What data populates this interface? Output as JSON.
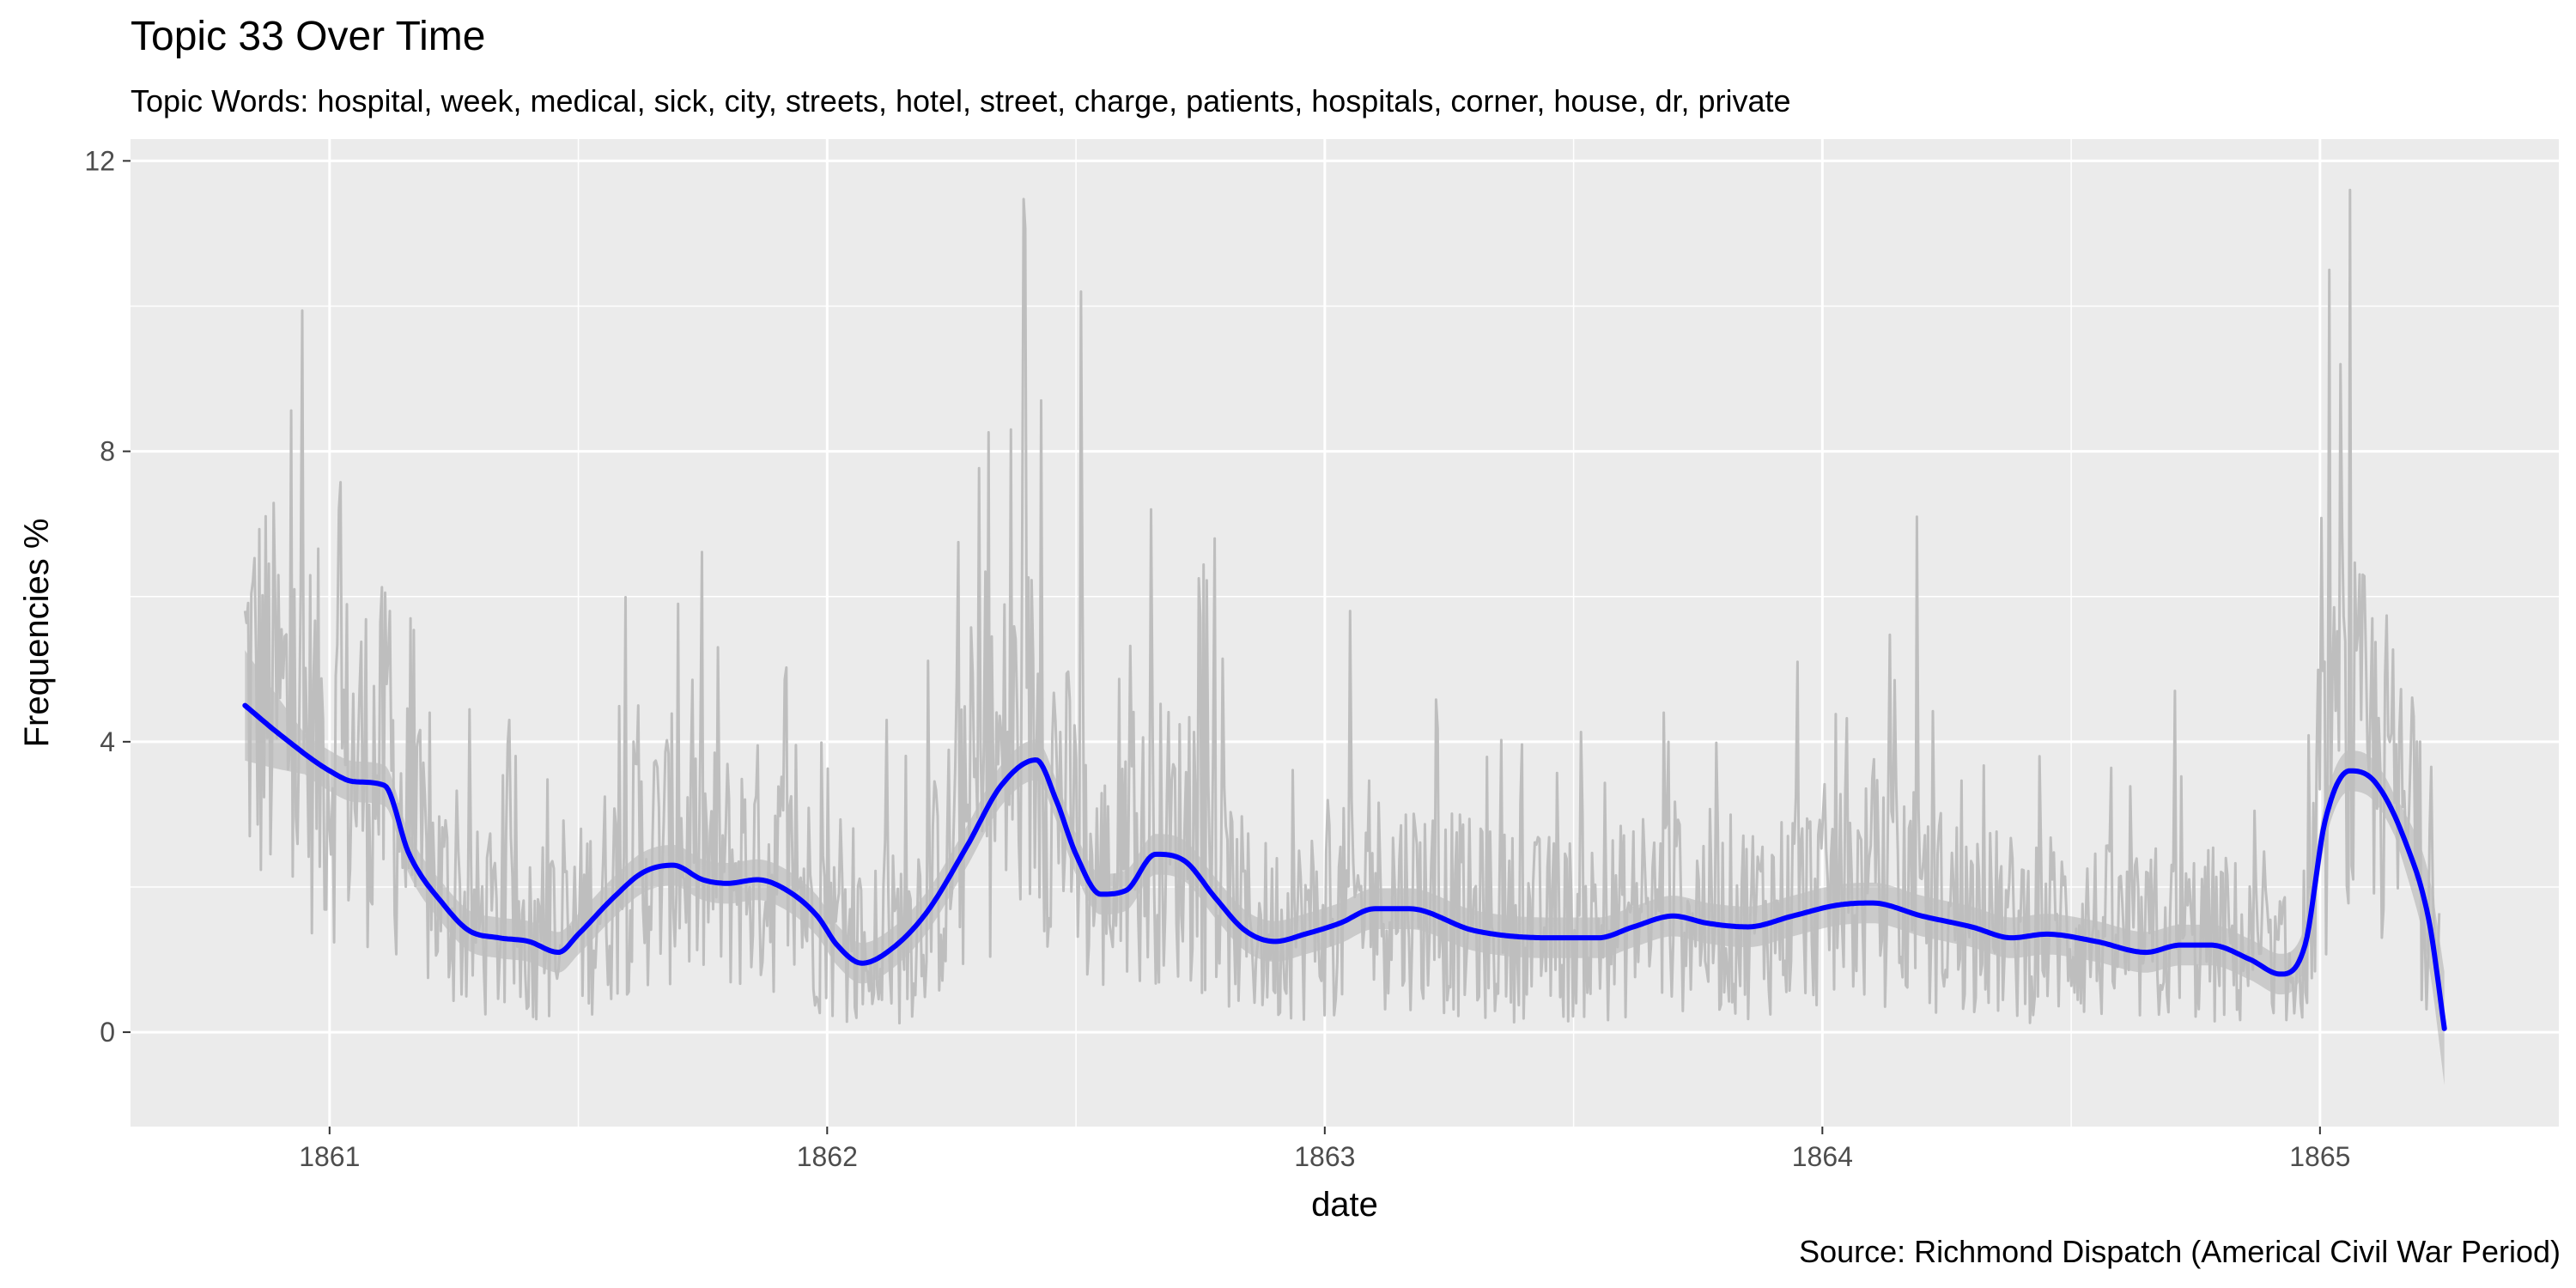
{
  "chart_data": {
    "type": "line",
    "title": "Topic 33 Over Time",
    "subtitle": "Topic Words: hospital, week, medical, sick, city, streets, hotel, street, charge, patients, hospitals, corner, house, dr, private",
    "xlabel": "date",
    "ylabel": "Frequencies %",
    "caption": "Source: Richmond Dispatch (Americal Civil War Period)",
    "xlim": [
      1860.6,
      1865.48
    ],
    "ylim": [
      -1.3,
      12.3
    ],
    "x_ticks": [
      1861,
      1862,
      1863,
      1864,
      1865
    ],
    "x_tick_labels": [
      "1861",
      "1862",
      "1863",
      "1864",
      "1865"
    ],
    "y_ticks": [
      0,
      4,
      8,
      12
    ],
    "y_tick_labels": [
      "0",
      "4",
      "8",
      "12"
    ],
    "grid": true,
    "colors": {
      "panel": "#ebebeb",
      "grid": "#ffffff",
      "raw_series": "#bebebe",
      "smooth": "#0000ff",
      "band": "#999999"
    },
    "series": [
      {
        "kind": "smoothed",
        "x": [
          1860.83,
          1860.9,
          1861.0,
          1861.05,
          1861.11,
          1861.16,
          1861.23,
          1861.28,
          1861.34,
          1861.4,
          1861.46,
          1861.5,
          1861.57,
          1861.63,
          1861.69,
          1861.75,
          1861.8,
          1861.86,
          1861.92,
          1861.98,
          1862.02,
          1862.07,
          1862.13,
          1862.2,
          1862.28,
          1862.35,
          1862.42,
          1862.46,
          1862.5,
          1862.55,
          1862.6,
          1862.66,
          1862.72,
          1862.78,
          1862.84,
          1862.9,
          1862.96,
          1863.03,
          1863.1,
          1863.17,
          1863.3,
          1863.45,
          1863.55,
          1863.62,
          1863.7,
          1863.77,
          1863.85,
          1863.94,
          1864.03,
          1864.1,
          1864.2,
          1864.3,
          1864.38,
          1864.45,
          1864.55,
          1864.65,
          1864.72,
          1864.78,
          1864.86,
          1864.92,
          1864.97,
          1865.01,
          1865.06,
          1865.11,
          1865.17,
          1865.22,
          1865.25
        ],
        "values": [
          4.5,
          4.1,
          3.6,
          3.45,
          3.4,
          2.45,
          1.75,
          1.4,
          1.3,
          1.25,
          1.1,
          1.35,
          1.85,
          2.2,
          2.3,
          2.1,
          2.05,
          2.1,
          1.95,
          1.6,
          1.2,
          0.95,
          1.15,
          1.65,
          2.55,
          3.4,
          3.75,
          3.2,
          2.45,
          1.9,
          1.95,
          2.45,
          2.35,
          1.85,
          1.4,
          1.25,
          1.35,
          1.5,
          1.7,
          1.7,
          1.4,
          1.3,
          1.3,
          1.45,
          1.6,
          1.5,
          1.45,
          1.6,
          1.75,
          1.78,
          1.6,
          1.45,
          1.3,
          1.35,
          1.25,
          1.1,
          1.2,
          1.2,
          1.0,
          0.8,
          1.2,
          2.9,
          3.6,
          3.45,
          2.65,
          1.5,
          0.05
        ]
      },
      {
        "kind": "raw",
        "x_range": [
          1860.83,
          1865.24
        ],
        "peaks": [
          {
            "x": 1860.93,
            "y": 6.1
          },
          {
            "x": 1861.02,
            "y": 7.2
          },
          {
            "x": 1861.12,
            "y": 5.8
          },
          {
            "x": 1861.2,
            "y": 4.4
          },
          {
            "x": 1861.36,
            "y": 4.3
          },
          {
            "x": 1861.62,
            "y": 4.5
          },
          {
            "x": 1861.7,
            "y": 5.9
          },
          {
            "x": 1861.78,
            "y": 5.3
          },
          {
            "x": 1862.12,
            "y": 4.3
          },
          {
            "x": 1862.26,
            "y": 4.8
          },
          {
            "x": 1862.37,
            "y": 8.3
          },
          {
            "x": 1862.43,
            "y": 8.7
          },
          {
            "x": 1862.51,
            "y": 10.2
          },
          {
            "x": 1862.65,
            "y": 7.2
          },
          {
            "x": 1862.78,
            "y": 6.8
          },
          {
            "x": 1863.05,
            "y": 5.8
          },
          {
            "x": 1863.68,
            "y": 4.4
          },
          {
            "x": 1863.95,
            "y": 5.1
          },
          {
            "x": 1864.19,
            "y": 7.1
          },
          {
            "x": 1864.71,
            "y": 4.7
          },
          {
            "x": 1865.02,
            "y": 10.5
          },
          {
            "x": 1865.04,
            "y": 9.2
          },
          {
            "x": 1865.06,
            "y": 11.6
          },
          {
            "x": 1865.13,
            "y": 4.9
          },
          {
            "x": 1865.2,
            "y": 4.0
          }
        ]
      }
    ]
  }
}
